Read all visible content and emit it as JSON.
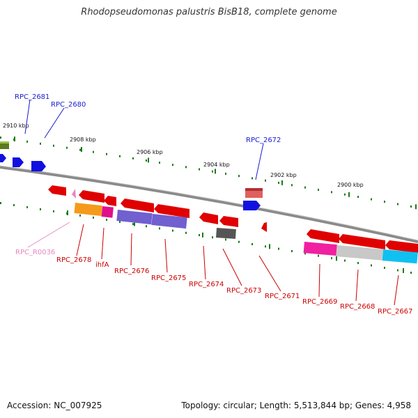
{
  "title": "Rhodopseudomonas palustris BisB18, complete genome",
  "accession": "Accession: NC_007925",
  "info": "Topology: circular; Length: 5,513,844 bp; Genes: 4,958",
  "colors": {
    "backbone": "#8a8a8a",
    "tick": "#1a7a1a",
    "cds": "#e00000",
    "forward_label": "#1a1ad0",
    "reverse_label": "#cc0000",
    "rna_label": "#e887c0"
  },
  "ticks": [
    {
      "label": "2910 kbp"
    },
    {
      "label": "2908 kbp"
    },
    {
      "label": "2906 kbp"
    },
    {
      "label": "2904 kbp"
    },
    {
      "label": "2902 kbp"
    },
    {
      "label": "2900 kbp"
    }
  ],
  "gene_labels": [
    {
      "text": "RPC_2681",
      "strand": "forward"
    },
    {
      "text": "RPC_2680",
      "strand": "forward"
    },
    {
      "text": "RPC_2672",
      "strand": "forward"
    },
    {
      "text": "RPC_R0036",
      "strand": "rna"
    },
    {
      "text": "RPC_2678",
      "strand": "reverse"
    },
    {
      "text": "ihfA",
      "strand": "reverse"
    },
    {
      "text": "RPC_2676",
      "strand": "reverse"
    },
    {
      "text": "RPC_2675",
      "strand": "reverse"
    },
    {
      "text": "RPC_2674",
      "strand": "reverse"
    },
    {
      "text": "RPC_2673",
      "strand": "reverse"
    },
    {
      "text": "RPC_2671",
      "strand": "reverse"
    },
    {
      "text": "RPC_2669",
      "strand": "reverse"
    },
    {
      "text": "RPC_2668",
      "strand": "reverse"
    },
    {
      "text": "RPC_2667",
      "strand": "reverse"
    }
  ]
}
